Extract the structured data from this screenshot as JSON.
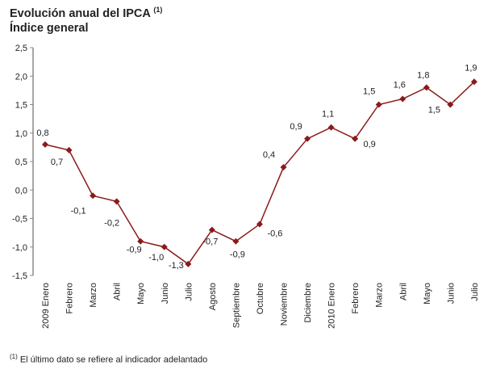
{
  "chart_data": {
    "type": "line",
    "title": "Evolución anual del IPCA",
    "title_superscript": "(1)",
    "subtitle": "Índice general",
    "categories": [
      "2009 Enero",
      "Febrero",
      "Marzo",
      "Abril",
      "Mayo",
      "Junio",
      "Julio",
      "Agosto",
      "Septiembre",
      "Octubre",
      "Noviembre",
      "Diciembre",
      "2010 Enero",
      "Febrero",
      "Marzo",
      "Abril",
      "Mayo",
      "Junio",
      "Julio"
    ],
    "series": [
      {
        "values": [
          0.8,
          0.7,
          -0.1,
          -0.2,
          -0.9,
          -1.0,
          -1.3,
          -0.7,
          -0.9,
          -0.6,
          0.4,
          0.9,
          1.1,
          0.9,
          1.5,
          1.6,
          1.8,
          1.5,
          1.9
        ]
      }
    ],
    "data_labels": [
      "0,8",
      "0,7",
      "-0,1",
      "-0,2",
      "-0,9",
      "-1,0",
      "-1,3",
      "-0,7",
      "-0,9",
      "-0,6",
      "0,4",
      "0,9",
      "1,1",
      "0,9",
      "1,5",
      "1,6",
      "1,8",
      "1,5",
      "1,9"
    ],
    "ylim": [
      -1.5,
      2.5
    ],
    "yticks": [
      "2,5",
      "2,0",
      "1,5",
      "1,0",
      "0,5",
      "0,0",
      "-0,5",
      "-1,0",
      "-1,5"
    ],
    "grid": false,
    "line_color": "#8b1a1a",
    "marker": "diamond",
    "xlabel": "",
    "ylabel": ""
  },
  "footnote": {
    "mark": "(1)",
    "text": "El último dato se refiere al indicador adelantado"
  }
}
